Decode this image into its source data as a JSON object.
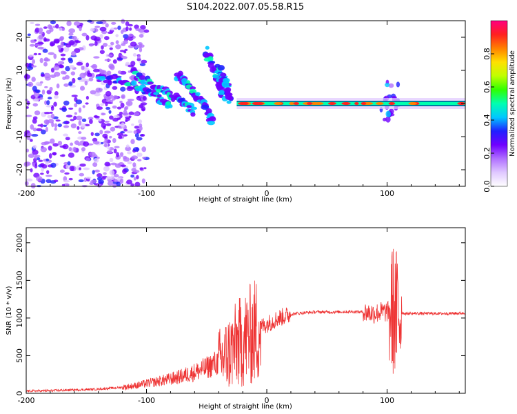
{
  "title": "S104.2022.007.05.58.R15",
  "chart_data": [
    {
      "type": "heatmap",
      "xlabel": "Height of straight line (km)",
      "ylabel": "Frequency (Hz)",
      "xlim": [
        -200,
        165
      ],
      "ylim": [
        -25,
        25
      ],
      "xticks": [
        -200,
        -100,
        0,
        100
      ],
      "yticks": [
        -20,
        -10,
        0,
        10,
        20
      ],
      "colorbar": {
        "label": "Normalized spectral amplitude",
        "range": [
          0,
          1
        ],
        "ticks": [
          "0.0",
          "0.2",
          "0.4",
          "0.6",
          "0.8"
        ],
        "colors": [
          "#ffffff",
          "#e0c8ff",
          "#b070ff",
          "#7000ff",
          "#2020ff",
          "#00c8ff",
          "#00ffb0",
          "#30ff00",
          "#c0ff00",
          "#ffe000",
          "#ff8000",
          "#ff2020",
          "#ff0080"
        ]
      },
      "features": [
        {
          "name": "broadband scatter",
          "x_range": [
            -200,
            -120
          ],
          "y_range": [
            -25,
            25
          ]
        },
        {
          "name": "descending streak 1",
          "x": [
            -140,
            -115,
            -95,
            -80
          ],
          "y": [
            8,
            6,
            3,
            -1
          ]
        },
        {
          "name": "descending streak 2",
          "x": [
            -110,
            -90,
            -72,
            -60
          ],
          "y": [
            9,
            5,
            1,
            -3
          ]
        },
        {
          "name": "descending streak 3",
          "x": [
            -75,
            -62,
            -52,
            -45
          ],
          "y": [
            9,
            4,
            0,
            -6
          ]
        },
        {
          "name": "descending streak 4",
          "x": [
            -50,
            -42,
            -36
          ],
          "y": [
            16,
            8,
            2
          ]
        },
        {
          "name": "descending streak 5",
          "x": [
            -40,
            -34,
            -30
          ],
          "y": [
            11,
            6,
            1
          ]
        },
        {
          "name": "carrier line",
          "x_range": [
            -25,
            165
          ],
          "y": 0
        },
        {
          "name": "disturbance",
          "x_range": [
            95,
            110
          ],
          "y_range": [
            -5,
            7
          ]
        }
      ]
    },
    {
      "type": "line",
      "xlabel": "Height of straight line (km)",
      "ylabel": "SNR (10 * v/v)",
      "xlim": [
        -200,
        165
      ],
      "ylim": [
        0,
        2200
      ],
      "xticks": [
        -200,
        -100,
        0,
        100
      ],
      "yticks": [
        0,
        500,
        1000,
        1500,
        2000
      ],
      "color": "#ee3333",
      "x": [
        -200,
        -180,
        -160,
        -140,
        -120,
        -110,
        -100,
        -90,
        -80,
        -70,
        -60,
        -50,
        -40,
        -35,
        -30,
        -25,
        -20,
        -15,
        -10,
        -5,
        0,
        10,
        20,
        30,
        40,
        50,
        60,
        70,
        80,
        85,
        90,
        95,
        100,
        105,
        108,
        110,
        115,
        120,
        130,
        140,
        150,
        165
      ],
      "y": [
        30,
        35,
        45,
        55,
        80,
        100,
        130,
        160,
        190,
        230,
        280,
        340,
        420,
        480,
        560,
        640,
        700,
        760,
        820,
        880,
        920,
        1000,
        1050,
        1070,
        1080,
        1080,
        1080,
        1085,
        1080,
        1070,
        1060,
        1080,
        1080,
        1100,
        1050,
        1080,
        1060,
        1060,
        1060,
        1060,
        1060,
        1065
      ]
    }
  ]
}
